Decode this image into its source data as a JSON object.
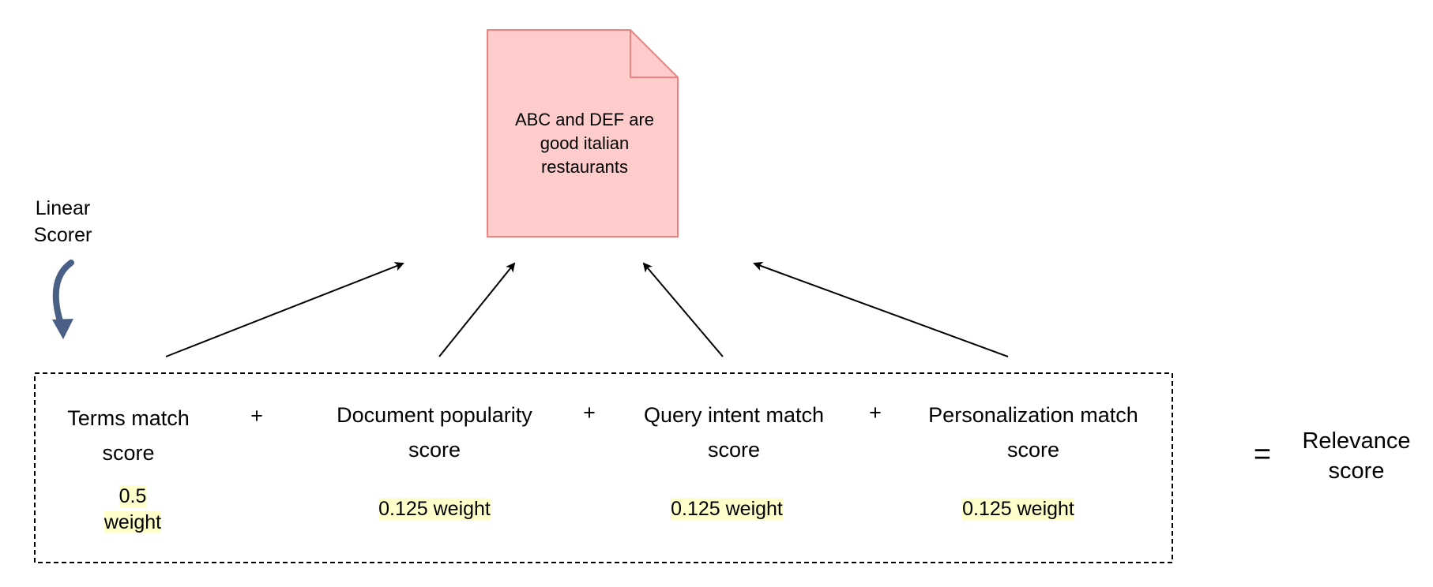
{
  "document": {
    "text": "ABC and DEF are good italian restaurants"
  },
  "scorer": {
    "label": "Linear Scorer"
  },
  "components": [
    {
      "name": "Terms match score",
      "weight": "0.5 weight"
    },
    {
      "name": "Document popularity score",
      "weight": "0.125 weight"
    },
    {
      "name": "Query intent match score",
      "weight": "0.125 weight"
    },
    {
      "name": "Personalization match score",
      "weight": "0.125 weight"
    }
  ],
  "operators": {
    "plus": "+",
    "equals": "="
  },
  "result": {
    "label": "Relevance score"
  },
  "colors": {
    "document_fill": "#ffcccc",
    "document_stroke": "#f08080",
    "weight_highlight": "#ffffcc",
    "curved_arrow": "#4a5f86"
  }
}
